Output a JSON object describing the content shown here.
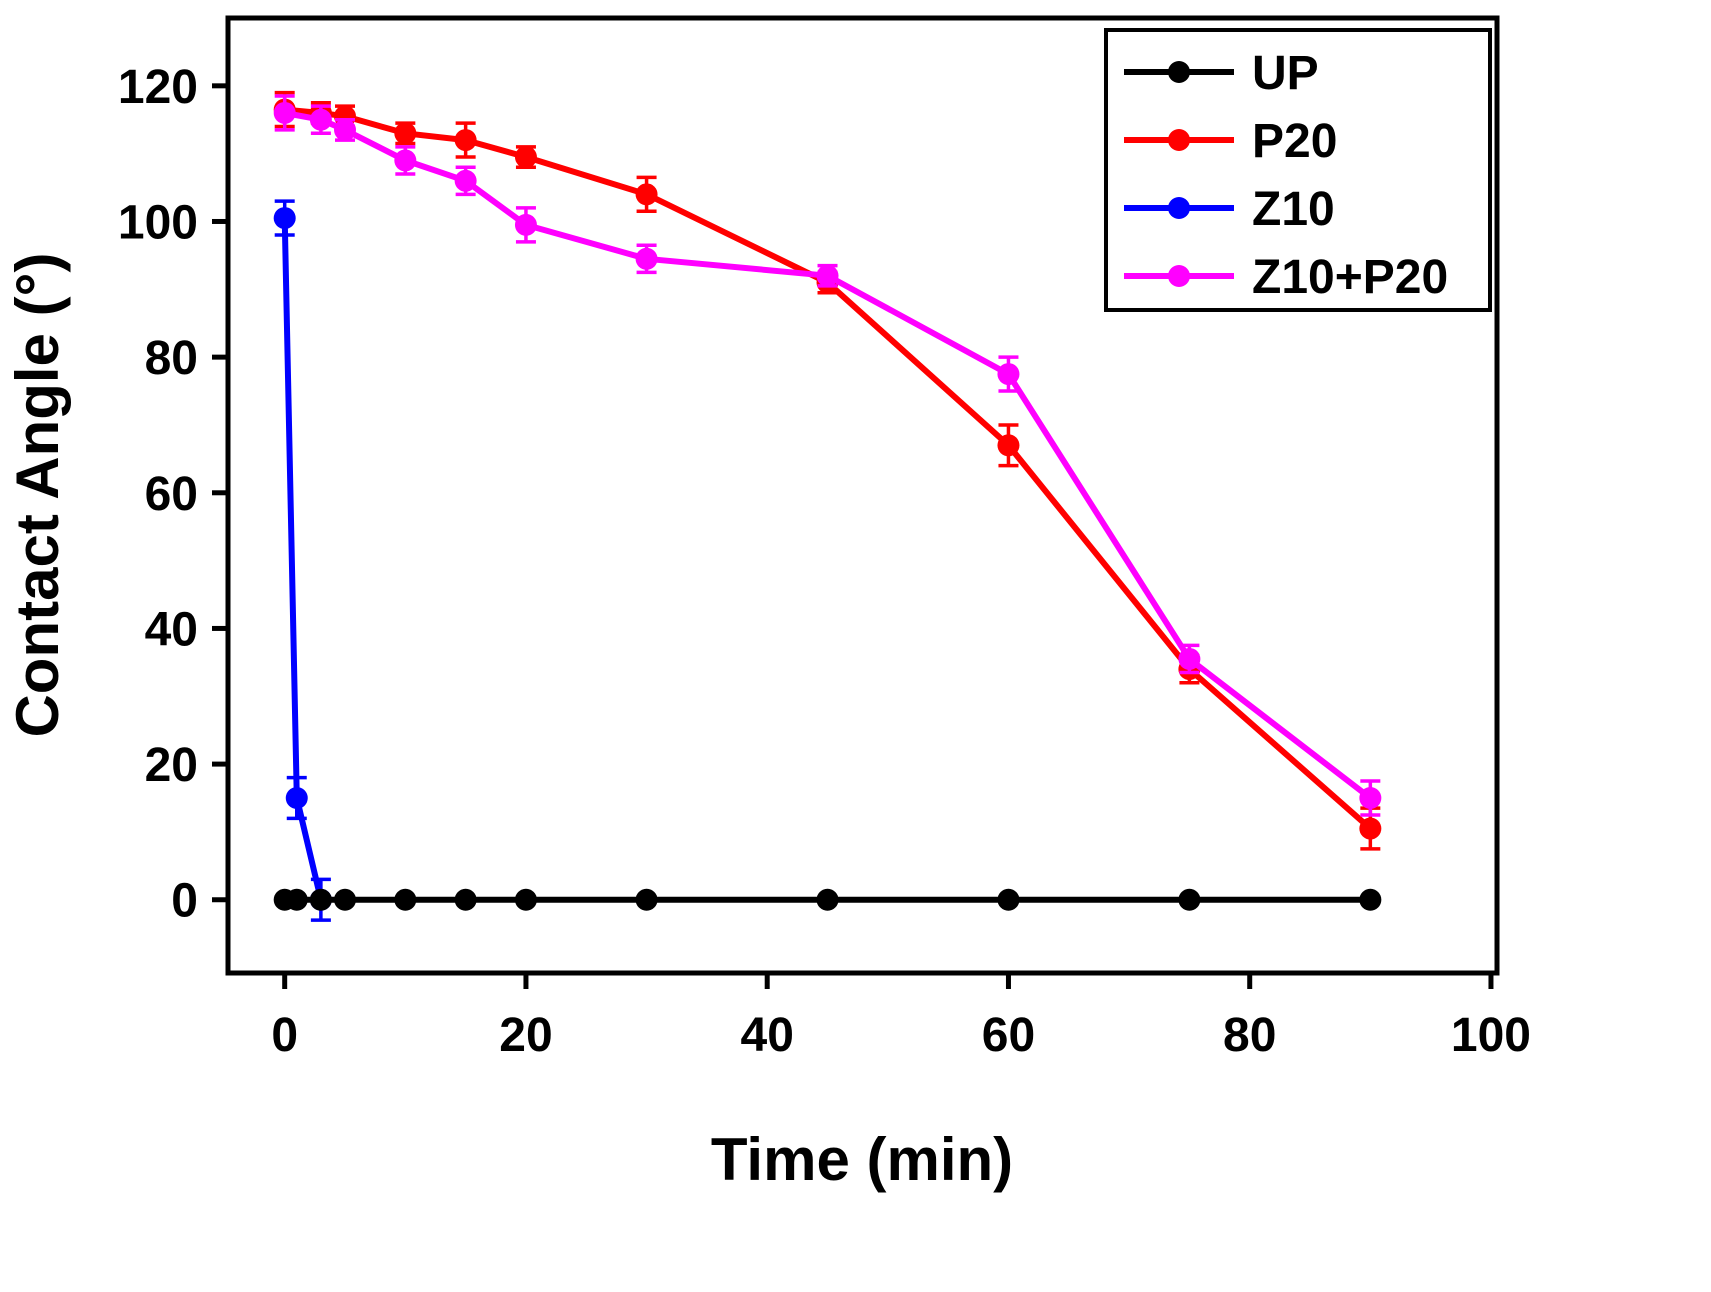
{
  "chart_data": {
    "type": "line",
    "title": "",
    "xlabel": "Time (min)",
    "ylabel": "Contact Angle (°)",
    "xlim": [
      -4.7,
      100.5
    ],
    "ylim": [
      -10.8,
      130.0
    ],
    "xticks": [
      0,
      20,
      40,
      60,
      80,
      100
    ],
    "yticks": [
      0,
      20,
      40,
      60,
      80,
      100,
      120
    ],
    "grid": false,
    "legend_position": "top-right",
    "draw_order": [
      1,
      2,
      3,
      0
    ],
    "series": [
      {
        "name": "UP",
        "color": "#000000",
        "x": [
          0,
          1,
          3,
          5,
          10,
          15,
          20,
          30,
          45,
          60,
          75,
          90
        ],
        "y": [
          0,
          0,
          0,
          0,
          0,
          0,
          0,
          0,
          0,
          0,
          0,
          0
        ],
        "err": [
          0,
          0,
          0,
          0,
          0,
          0,
          0,
          0,
          0,
          0,
          0,
          0
        ]
      },
      {
        "name": "P20",
        "color": "#ff0000",
        "x": [
          0,
          3,
          5,
          10,
          15,
          20,
          30,
          45,
          60,
          75,
          90
        ],
        "y": [
          116.5,
          116,
          115.5,
          113,
          112,
          109.5,
          104,
          91,
          67,
          34,
          10.5
        ],
        "err": [
          2.5,
          1.5,
          1.5,
          1.5,
          2.5,
          1.5,
          2.5,
          1.5,
          3,
          2,
          3
        ]
      },
      {
        "name": "Z10",
        "color": "#0000ff",
        "x": [
          0,
          1,
          3
        ],
        "y": [
          100.5,
          15,
          0
        ],
        "err": [
          2.5,
          3,
          3
        ]
      },
      {
        "name": "Z10+P20",
        "color": "#ff00ff",
        "x": [
          0,
          3,
          5,
          10,
          15,
          20,
          30,
          45,
          60,
          75,
          90
        ],
        "y": [
          116,
          115,
          113.5,
          109,
          106,
          99.5,
          94.5,
          92,
          77.5,
          35.5,
          15
        ],
        "err": [
          2.5,
          2,
          1.5,
          2,
          2,
          2.5,
          2,
          1.5,
          2.5,
          2,
          2.5
        ]
      }
    ]
  }
}
